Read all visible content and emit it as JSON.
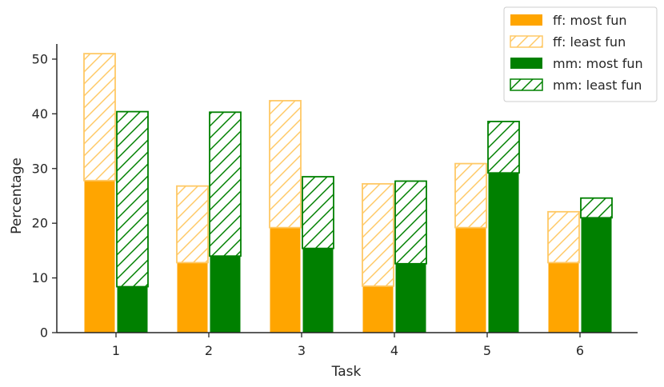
{
  "chart_data": {
    "type": "bar",
    "stacked": true,
    "categories": [
      "1",
      "2",
      "3",
      "4",
      "5",
      "6"
    ],
    "xlabel": "Task",
    "ylabel": "Percentage",
    "ylim": [
      0,
      53.5
    ],
    "yticks": [
      0,
      10,
      20,
      30,
      40,
      50
    ],
    "grid": false,
    "legend_position": "top-right",
    "groups": [
      {
        "name": "ff",
        "color": "#FFA500",
        "series": [
          {
            "name": "ff: most fun",
            "fill": "solid",
            "values": [
              27.8,
              12.8,
              19.2,
              8.5,
              19.2,
              12.8
            ]
          },
          {
            "name": "ff: least fun",
            "fill": "hatch",
            "values": [
              23.2,
              14.0,
              23.2,
              18.7,
              11.7,
              9.3
            ]
          }
        ]
      },
      {
        "name": "mm",
        "color": "#008000",
        "series": [
          {
            "name": "mm: most fun",
            "fill": "solid",
            "values": [
              8.4,
              14.0,
              15.4,
              12.6,
              29.2,
              21.0
            ]
          },
          {
            "name": "mm: least fun",
            "fill": "hatch",
            "values": [
              32.0,
              26.3,
              13.1,
              15.1,
              9.4,
              3.6
            ]
          }
        ]
      }
    ]
  }
}
